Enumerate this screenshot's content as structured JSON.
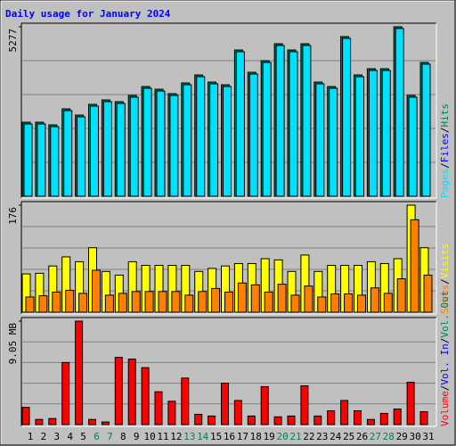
{
  "chart_data": [
    {
      "type": "bar",
      "title": "Daily usage for January 2024",
      "ylim": [
        0,
        5277
      ],
      "yticks": [
        5277
      ],
      "series": [
        {
          "name": "Hits",
          "color": "#00805c",
          "values": [
            2305,
            2305,
            2222,
            2721,
            2527,
            2860,
            2999,
            2944,
            3138,
            3416,
            3332,
            3194,
            3527,
            3777,
            3555,
            3471,
            4554,
            3860,
            4221,
            4749,
            4554,
            4749,
            3555,
            3416,
            4971,
            3777,
            3971,
            3971,
            5277,
            3138,
            4166
          ]
        },
        {
          "name": "Pages",
          "color": "#00e0ff",
          "values": [
            2250,
            2250,
            2167,
            2666,
            2472,
            2805,
            2944,
            2889,
            3083,
            3361,
            3277,
            3139,
            3472,
            3722,
            3500,
            3416,
            4499,
            3805,
            4166,
            4694,
            4499,
            4694,
            3500,
            3361,
            4916,
            3722,
            3916,
            3916,
            5222,
            3083,
            4111
          ]
        }
      ],
      "legend_extra": [
        {
          "name": "Files",
          "color": "#0000ff"
        }
      ],
      "legend_separator": "/"
    },
    {
      "type": "bar",
      "ylim": [
        0,
        176
      ],
      "yticks": [
        176
      ],
      "series": [
        {
          "name": "Visits",
          "color": "#ffff00",
          "values": [
            63,
            64,
            76,
            91,
            83,
            106,
            67,
            61,
            83,
            77,
            77,
            77,
            77,
            67,
            72,
            76,
            80,
            80,
            88,
            86,
            67,
            94,
            67,
            77,
            77,
            77,
            83,
            80,
            88,
            176,
            106
          ]
        },
        {
          "name": "Sites",
          "color": "#ff8000",
          "values": [
            25,
            27,
            33,
            36,
            31,
            69,
            28,
            31,
            34,
            34,
            34,
            34,
            28,
            34,
            39,
            33,
            48,
            45,
            33,
            46,
            28,
            43,
            25,
            30,
            30,
            28,
            40,
            31,
            55,
            152,
            61
          ]
        }
      ],
      "legend_extra": [],
      "legend_separator": "/"
    },
    {
      "type": "bar",
      "ylim": [
        0,
        9.05
      ],
      "yticks": [
        {
          "value": 9.05,
          "label": "9.05 MB"
        }
      ],
      "categories": [
        "1",
        "2",
        "3",
        "4",
        "5",
        "6",
        "7",
        "8",
        "9",
        "10",
        "11",
        "12",
        "13",
        "14",
        "15",
        "16",
        "17",
        "18",
        "19",
        "20",
        "21",
        "22",
        "23",
        "24",
        "25",
        "26",
        "27",
        "28",
        "29",
        "30",
        "31"
      ],
      "category_colors": [
        "#000000",
        "#000000",
        "#000000",
        "#000000",
        "#000000",
        "#00805c",
        "#00805c",
        "#000000",
        "#000000",
        "#000000",
        "#000000",
        "#000000",
        "#00805c",
        "#00805c",
        "#000000",
        "#000000",
        "#000000",
        "#000000",
        "#000000",
        "#00805c",
        "#00805c",
        "#000000",
        "#000000",
        "#000000",
        "#000000",
        "#000000",
        "#00805c",
        "#00805c",
        "#000000",
        "#000000",
        "#000000"
      ],
      "series": [
        {
          "name": "Volume",
          "color": "#ff0000",
          "values": [
            1.51,
            0.45,
            0.53,
            5.43,
            9.05,
            0.45,
            0.23,
            5.88,
            5.73,
            4.98,
            2.87,
            2.04,
            4.07,
            0.9,
            0.75,
            3.62,
            2.11,
            0.75,
            3.32,
            0.68,
            0.75,
            3.39,
            0.75,
            1.21,
            2.11,
            1.21,
            0.45,
            0.98,
            1.36,
            3.7,
            1.13
          ]
        }
      ],
      "legend_extra": [
        {
          "name": "Vol. In",
          "color": "#0000ff"
        },
        {
          "name": "Vol. Out",
          "color": "#00805c"
        }
      ],
      "legend_separator": "/"
    }
  ]
}
